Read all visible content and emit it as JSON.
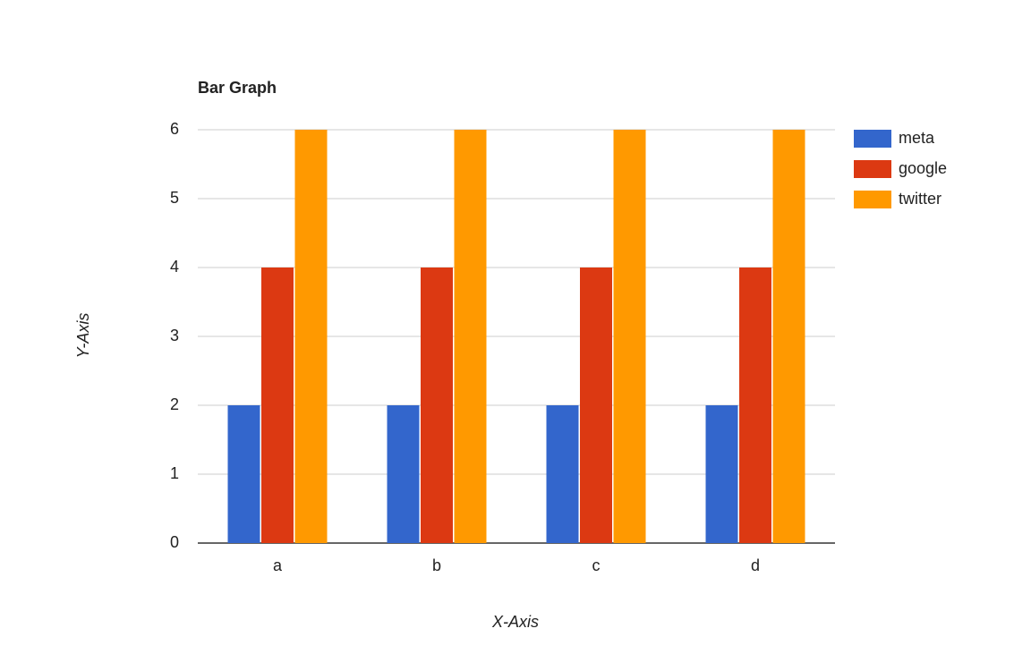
{
  "chart_data": {
    "type": "bar",
    "title": "Bar Graph",
    "x_label": "X-Axis",
    "y_label": "Y-Axis",
    "categories": [
      "a",
      "b",
      "c",
      "d"
    ],
    "series": [
      {
        "name": "meta",
        "color": "#3366cc",
        "values": [
          2,
          2,
          2,
          2
        ]
      },
      {
        "name": "google",
        "color": "#dc3912",
        "values": [
          4,
          4,
          4,
          4
        ]
      },
      {
        "name": "twitter",
        "color": "#ff9900",
        "values": [
          6,
          6,
          6,
          6
        ]
      }
    ],
    "ylim": [
      0,
      6
    ],
    "yticks": [
      0,
      1,
      2,
      3,
      4,
      5,
      6
    ],
    "grid": true,
    "legend": "right"
  }
}
